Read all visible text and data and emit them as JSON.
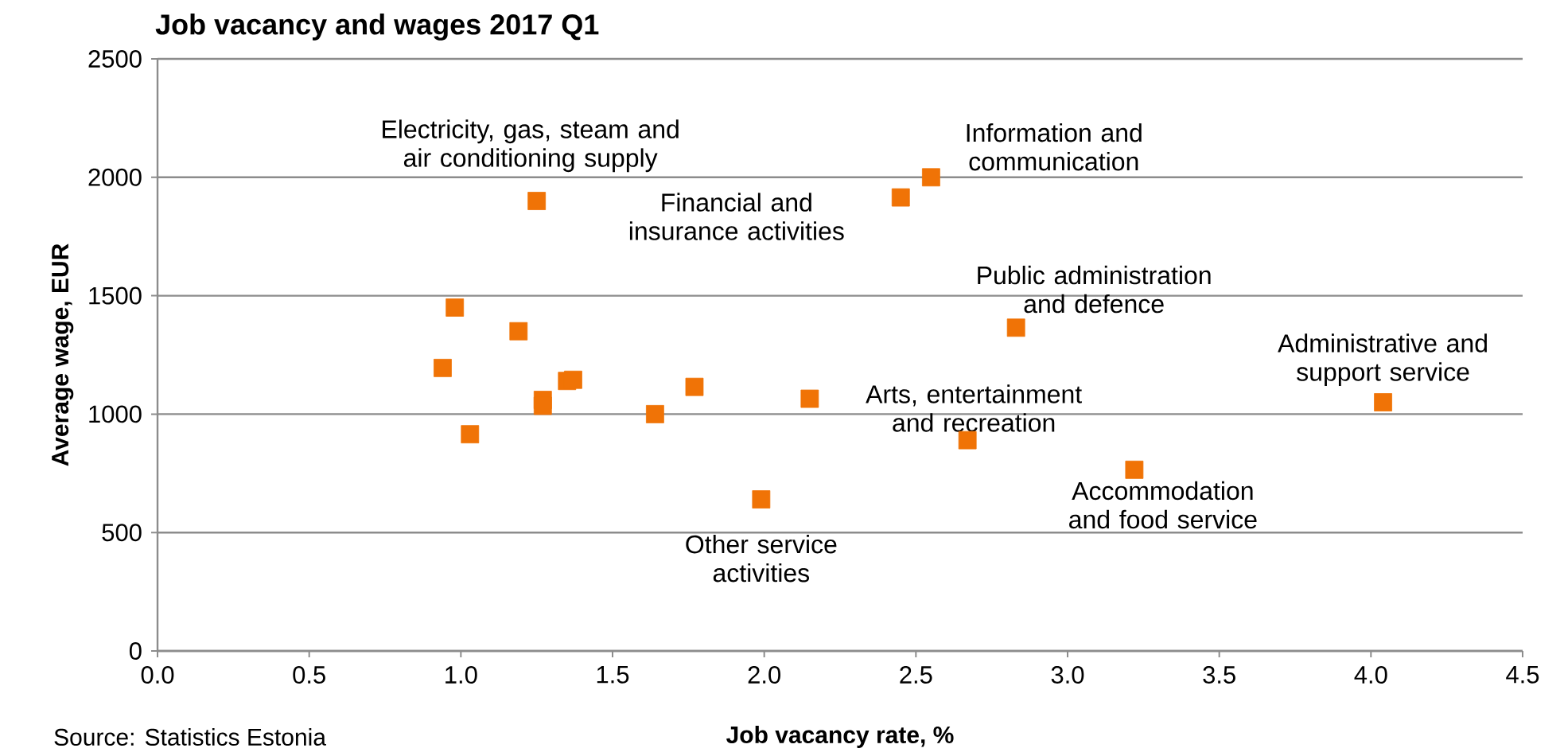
{
  "chart_data": {
    "type": "scatter",
    "title": "Job vacancy and wages 2017 Q1",
    "xlabel": "Job vacancy rate, %",
    "ylabel": "Average wage, EUR",
    "x": [
      1.25,
      0.98,
      1.19,
      0.94,
      1.35,
      1.37,
      1.27,
      1.27,
      1.03,
      1.64,
      1.77,
      1.99,
      2.15,
      2.45,
      2.55,
      2.83,
      2.67,
      3.22,
      4.04
    ],
    "values": [
      1900,
      1450,
      1350,
      1195,
      1140,
      1145,
      1060,
      1035,
      915,
      1000,
      1115,
      640,
      1065,
      1915,
      2000,
      1365,
      890,
      765,
      1050
    ],
    "color": "#f07306",
    "marker": "square",
    "grid": "y",
    "xlim": [
      0,
      4.5
    ],
    "xticks": [
      {
        "value": 0,
        "label": "0.0"
      },
      0.5,
      {
        "value": 1,
        "label": "1.0"
      },
      1.5,
      {
        "value": 2,
        "label": "2.0"
      },
      2.5,
      {
        "value": 3,
        "label": "3.0"
      },
      3.5,
      {
        "value": 4,
        "label": "4.0"
      },
      4.5
    ],
    "ylim": [
      0,
      2500
    ],
    "yticks": [
      0,
      500,
      1000,
      1500,
      2000,
      2500
    ],
    "annotations": [
      {
        "text": "Electricity, gas, steam and air conditioning supply",
        "x": 1.25,
        "y": 1900
      },
      {
        "text": "Financial and insurance activities",
        "x": 2.45,
        "y": 1915
      },
      {
        "text": "Information and communication",
        "x": 2.55,
        "y": 2000
      },
      {
        "text": "Public administration and defence",
        "x": 2.83,
        "y": 1365
      },
      {
        "text": "Administrative and support service",
        "x": 4.04,
        "y": 1050
      },
      {
        "text": "Arts, entertainment and recreation",
        "x": 2.67,
        "y": 890
      },
      {
        "text": "Accommodation and food service",
        "x": 3.22,
        "y": 765
      },
      {
        "text": "Other service activities",
        "x": 1.99,
        "y": 640
      },
      "Source: Statistics Estonia"
    ]
  }
}
